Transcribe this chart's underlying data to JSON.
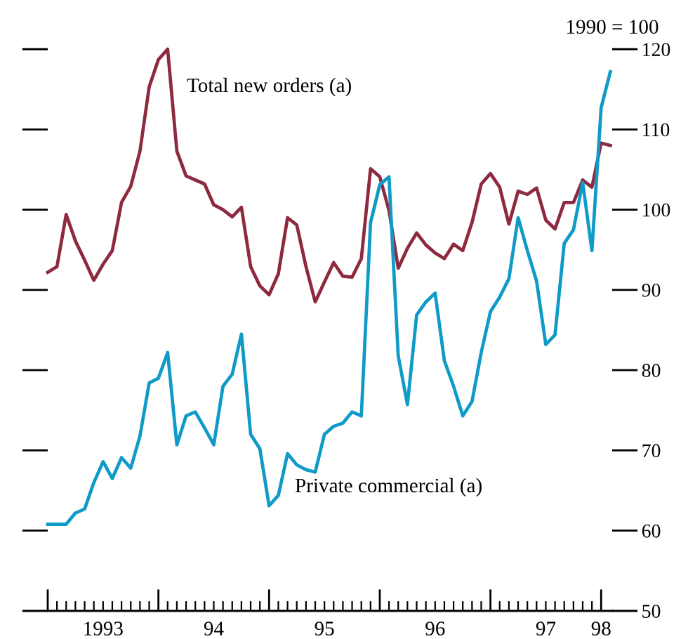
{
  "chart_data": {
    "type": "line",
    "ylabel": "1990 = 100",
    "x": [
      "1993-01",
      "1993-02",
      "1993-03",
      "1993-04",
      "1993-05",
      "1993-06",
      "1993-07",
      "1993-08",
      "1993-09",
      "1993-10",
      "1993-11",
      "1993-12",
      "1994-01",
      "1994-02",
      "1994-03",
      "1994-04",
      "1994-05",
      "1994-06",
      "1994-07",
      "1994-08",
      "1994-09",
      "1994-10",
      "1994-11",
      "1994-12",
      "1995-01",
      "1995-02",
      "1995-03",
      "1995-04",
      "1995-05",
      "1995-06",
      "1995-07",
      "1995-08",
      "1995-09",
      "1995-10",
      "1995-11",
      "1995-12",
      "1996-01",
      "1996-02",
      "1996-03",
      "1996-04",
      "1996-05",
      "1996-06",
      "1996-07",
      "1996-08",
      "1996-09",
      "1996-10",
      "1996-11",
      "1996-12",
      "1997-01",
      "1997-02",
      "1997-03",
      "1997-04",
      "1997-05",
      "1997-06",
      "1997-07",
      "1997-08",
      "1997-09",
      "1997-10",
      "1997-11",
      "1997-12",
      "1998-01",
      "1998-02"
    ],
    "series": [
      {
        "name": "Total new orders (a)",
        "color": "#8d2a3f",
        "values": [
          92.2,
          92.9,
          99.4,
          96.1,
          93.7,
          91.2,
          93.2,
          94.9,
          100.9,
          102.9,
          107.3,
          115.3,
          118.7,
          120,
          107.3,
          104.2,
          103.7,
          103.2,
          100.6,
          100.0,
          99.1,
          100.3,
          92.9,
          90.5,
          89.4,
          92.0,
          99.0,
          98.1,
          92.9,
          88.5,
          91.0,
          93.4,
          91.7,
          91.6,
          93.9,
          105.1,
          104.1,
          99.9,
          92.7,
          95.2,
          97.1,
          95.6,
          94.6,
          93.9,
          95.7,
          94.9,
          98.4,
          103.2,
          104.5,
          102.8,
          98.2,
          102.3,
          101.9,
          102.7,
          98.7,
          97.6,
          100.9,
          100.9,
          103.7,
          102.8,
          108.3,
          108.0
        ]
      },
      {
        "name": "Private commercial (a)",
        "color": "#0f9ac8",
        "values": [
          60.8,
          60.8,
          60.8,
          62.2,
          62.7,
          66.0,
          68.6,
          66.5,
          69.1,
          67.8,
          71.8,
          78.4,
          79.0,
          82.2,
          70.7,
          74.3,
          74.8,
          72.8,
          70.7,
          78.0,
          79.5,
          84.5,
          72.0,
          70.2,
          63.1,
          64.4,
          69.6,
          68.2,
          67.6,
          67.3,
          72.0,
          73.0,
          73.4,
          74.8,
          74.3,
          98.4,
          103.1,
          104.1,
          81.8,
          75.7,
          86.9,
          88.5,
          89.6,
          81.2,
          78.0,
          74.3,
          76.1,
          82.2,
          87.3,
          89.1,
          91.4,
          99.0,
          94.9,
          91.1,
          83.2,
          84.4,
          95.8,
          97.5,
          103.4,
          94.9,
          112.7,
          117.2
        ]
      }
    ],
    "xlim": [
      "1993-01",
      "1998-02-07"
    ],
    "xticks": [
      {
        "value": "1993-01",
        "label": null
      },
      {
        "value": "1993-02",
        "label": null
      },
      {
        "value": "1993-03",
        "label": null
      },
      {
        "value": "1993-04",
        "label": null
      },
      {
        "value": "1993-05",
        "label": null
      },
      {
        "value": "1993-06",
        "label": null
      },
      {
        "value": "1993-07",
        "label": "1993"
      },
      {
        "value": "1993-08",
        "label": null
      },
      {
        "value": "1993-09",
        "label": null
      },
      {
        "value": "1993-10",
        "label": null
      },
      {
        "value": "1993-11",
        "label": null
      },
      {
        "value": "1993-12",
        "label": null
      },
      {
        "value": "1994-01",
        "label": null
      },
      {
        "value": "1994-02",
        "label": null
      },
      {
        "value": "1994-03",
        "label": null
      },
      {
        "value": "1994-04",
        "label": null
      },
      {
        "value": "1994-05",
        "label": null
      },
      {
        "value": "1994-06",
        "label": null
      },
      {
        "value": "1994-07",
        "label": "94"
      },
      {
        "value": "1994-08",
        "label": null
      },
      {
        "value": "1994-09",
        "label": null
      },
      {
        "value": "1994-10",
        "label": null
      },
      {
        "value": "1994-11",
        "label": null
      },
      {
        "value": "1994-12",
        "label": null
      },
      {
        "value": "1995-01",
        "label": null
      },
      {
        "value": "1995-02",
        "label": null
      },
      {
        "value": "1995-03",
        "label": null
      },
      {
        "value": "1995-04",
        "label": null
      },
      {
        "value": "1995-05",
        "label": null
      },
      {
        "value": "1995-06",
        "label": null
      },
      {
        "value": "1995-07",
        "label": "95"
      },
      {
        "value": "1995-08",
        "label": null
      },
      {
        "value": "1995-09",
        "label": null
      },
      {
        "value": "1995-10",
        "label": null
      },
      {
        "value": "1995-11",
        "label": null
      },
      {
        "value": "1995-12",
        "label": null
      },
      {
        "value": "1996-01",
        "label": null
      },
      {
        "value": "1996-02",
        "label": null
      },
      {
        "value": "1996-03",
        "label": null
      },
      {
        "value": "1996-04",
        "label": null
      },
      {
        "value": "1996-05",
        "label": null
      },
      {
        "value": "1996-06",
        "label": null
      },
      {
        "value": "1996-07",
        "label": "96"
      },
      {
        "value": "1996-08",
        "label": null
      },
      {
        "value": "1996-09",
        "label": null
      },
      {
        "value": "1996-10",
        "label": null
      },
      {
        "value": "1996-11",
        "label": null
      },
      {
        "value": "1996-12",
        "label": null
      },
      {
        "value": "1997-01",
        "label": null
      },
      {
        "value": "1997-02",
        "label": null
      },
      {
        "value": "1997-03",
        "label": null
      },
      {
        "value": "1997-04",
        "label": null
      },
      {
        "value": "1997-05",
        "label": null
      },
      {
        "value": "1997-06",
        "label": null
      },
      {
        "value": "1997-07",
        "label": "97"
      },
      {
        "value": "1997-08",
        "label": null
      },
      {
        "value": "1997-09",
        "label": null
      },
      {
        "value": "1997-10",
        "label": null
      },
      {
        "value": "1997-11",
        "label": null
      },
      {
        "value": "1997-12",
        "label": null
      },
      {
        "value": "1998-01",
        "label": "98"
      }
    ],
    "ylim": [
      50,
      120
    ],
    "yticks": [
      50,
      60,
      70,
      80,
      90,
      100,
      110,
      120
    ],
    "grid": false,
    "legend": false,
    "marker": "none",
    "line_style": "solid"
  }
}
